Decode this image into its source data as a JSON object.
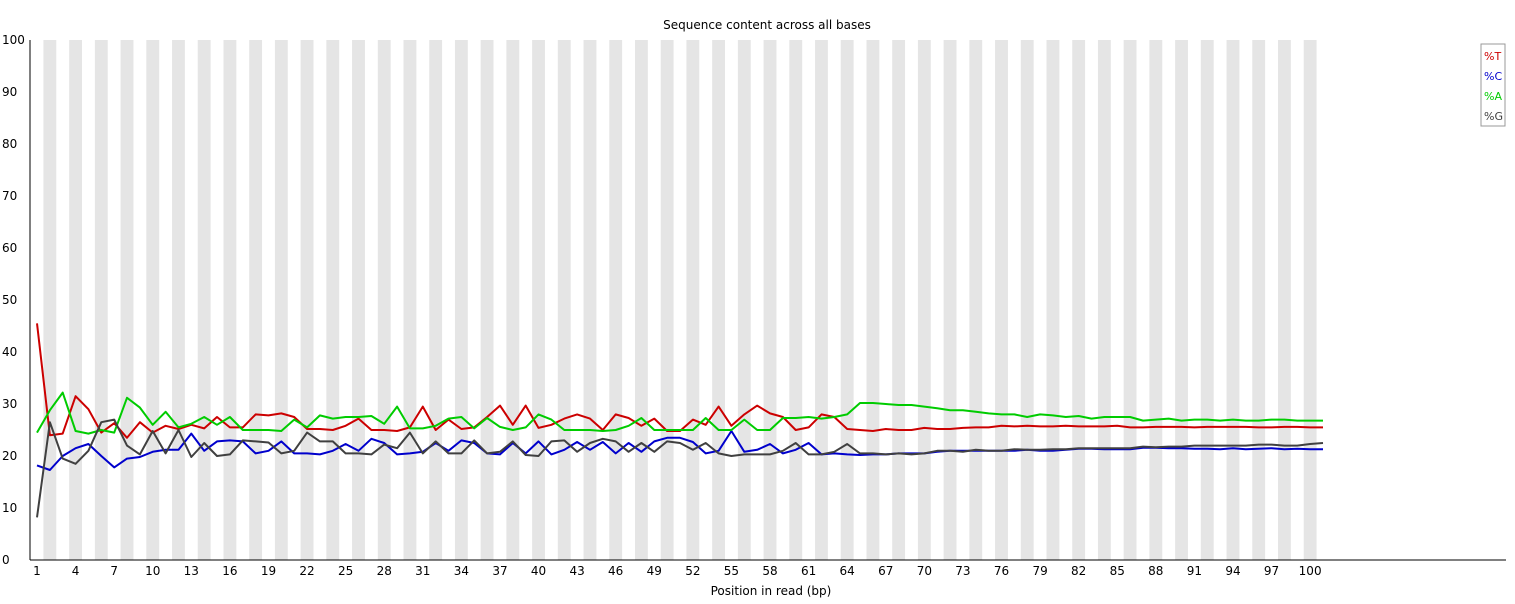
{
  "chart_data": {
    "type": "line",
    "title": "Sequence content across all bases",
    "xlabel": "Position in read (bp)",
    "ylabel": "",
    "ylim": [
      0,
      100
    ],
    "yticks": [
      0,
      10,
      20,
      30,
      40,
      50,
      60,
      70,
      80,
      90,
      100
    ],
    "x_tick_labels": [
      "1",
      "4",
      "7",
      "10",
      "13",
      "16",
      "19",
      "22",
      "25",
      "28",
      "31",
      "34",
      "37",
      "40",
      "43",
      "46",
      "49",
      "52",
      "55",
      "58",
      "61",
      "64",
      "67",
      "70",
      "73",
      "76",
      "79",
      "82",
      "85",
      "88",
      "91",
      "94",
      "97",
      "100"
    ],
    "x": [
      1,
      2,
      3,
      4,
      5,
      6,
      7,
      8,
      9,
      10,
      11,
      12,
      13,
      14,
      15,
      16,
      17,
      18,
      19,
      20,
      21,
      22,
      23,
      24,
      25,
      26,
      27,
      28,
      29,
      30,
      31,
      32,
      33,
      34,
      35,
      36,
      37,
      38,
      39,
      40,
      41,
      42,
      43,
      44,
      45,
      46,
      47,
      48,
      49,
      50,
      51,
      52,
      53,
      54,
      55,
      56,
      57,
      58,
      59,
      60,
      61,
      62,
      63,
      64,
      65,
      66,
      67,
      68,
      69,
      70,
      71,
      72,
      73,
      74,
      75,
      76,
      77,
      78,
      79,
      80,
      81,
      82,
      83,
      84,
      85,
      86,
      87,
      88,
      89,
      90,
      91,
      92,
      93,
      94,
      95,
      96,
      97,
      98,
      99,
      100,
      101
    ],
    "grid": "alternating vertical bands",
    "legend_position": "top-right",
    "series": [
      {
        "name": "%T",
        "color": "#cc0000",
        "values": [
          45.5,
          24,
          24.3,
          31.5,
          29,
          24.5,
          26.3,
          23.5,
          26.5,
          24.5,
          25.8,
          25.2,
          26,
          25.3,
          27.5,
          25.5,
          25.5,
          28,
          27.8,
          28.2,
          27.5,
          25.2,
          25.2,
          25,
          25.8,
          27.2,
          25,
          25,
          24.8,
          25.5,
          29.5,
          25,
          27,
          25.2,
          25.5,
          27.5,
          29.7,
          26,
          29.7,
          25.4,
          26,
          27.2,
          28,
          27.2,
          25,
          28,
          27.3,
          25.8,
          27.2,
          24.8,
          24.8,
          27,
          26,
          29.5,
          25.8,
          28,
          29.7,
          28.2,
          27.5,
          25,
          25.5,
          28,
          27.5,
          25.2,
          25,
          24.8,
          25.2,
          25,
          25,
          25.4,
          25.2,
          25.2,
          25.4,
          25.5,
          25.5,
          25.8,
          25.7,
          25.8,
          25.7,
          25.7,
          25.8,
          25.7,
          25.7,
          25.7,
          25.8,
          25.5,
          25.5,
          25.6,
          25.6,
          25.6,
          25.5,
          25.6,
          25.6,
          25.6,
          25.6,
          25.5,
          25.5,
          25.6,
          25.6,
          25.5,
          25.5
        ]
      },
      {
        "name": "%C",
        "color": "#0000cc",
        "values": [
          18.2,
          17.3,
          20,
          21.5,
          22.3,
          20,
          17.8,
          19.5,
          19.8,
          20.8,
          21.2,
          21.2,
          24.3,
          21,
          22.8,
          23,
          22.8,
          20.5,
          21,
          22.8,
          20.5,
          20.5,
          20.3,
          21,
          22.3,
          21,
          23.3,
          22.5,
          20.3,
          20.5,
          20.8,
          22.5,
          21,
          23,
          22.5,
          20.5,
          20.3,
          22.5,
          20.5,
          22.8,
          20.3,
          21.2,
          22.7,
          21.2,
          22.7,
          20.5,
          22.5,
          20.8,
          22.8,
          23.5,
          23.5,
          22.7,
          20.5,
          21,
          24.8,
          20.8,
          21.2,
          22.3,
          20.5,
          21.2,
          22.5,
          20.3,
          20.5,
          20.3,
          20.2,
          20.3,
          20.3,
          20.5,
          20.5,
          20.5,
          20.8,
          21,
          21,
          21,
          21,
          21,
          21,
          21.2,
          21,
          21,
          21.2,
          21.4,
          21.4,
          21.3,
          21.3,
          21.3,
          21.6,
          21.6,
          21.5,
          21.5,
          21.4,
          21.4,
          21.3,
          21.5,
          21.3,
          21.4,
          21.5,
          21.3,
          21.4,
          21.3,
          21.3
        ]
      },
      {
        "name": "%A",
        "color": "#00cc00",
        "values": [
          24.5,
          28.8,
          32.2,
          24.8,
          24.3,
          25,
          24.5,
          31.2,
          29.3,
          26,
          28.5,
          25.5,
          26.2,
          27.5,
          26,
          27.5,
          25,
          25,
          25,
          24.8,
          27,
          25.5,
          27.8,
          27.2,
          27.5,
          27.5,
          27.7,
          26.2,
          29.5,
          25.3,
          25.3,
          25.8,
          27.2,
          27.5,
          25.3,
          27.3,
          25.6,
          25,
          25.5,
          28,
          27,
          25,
          25,
          25,
          24.8,
          25,
          25.8,
          27.3,
          25,
          25,
          25,
          25,
          27.3,
          25,
          25,
          27,
          25,
          25,
          27.3,
          27.3,
          27.5,
          27.2,
          27.5,
          28,
          30.2,
          30.2,
          30,
          29.8,
          29.8,
          29.5,
          29.2,
          28.8,
          28.8,
          28.5,
          28.2,
          28,
          28,
          27.5,
          28,
          27.8,
          27.5,
          27.7,
          27.2,
          27.5,
          27.5,
          27.5,
          26.8,
          27,
          27.2,
          26.8,
          27,
          27,
          26.8,
          27,
          26.8,
          26.8,
          27,
          27,
          26.8,
          26.8,
          26.8
        ]
      },
      {
        "name": "%G",
        "color": "#404040",
        "values": [
          8.2,
          26.5,
          19.5,
          18.5,
          21,
          26.5,
          27,
          22,
          20.3,
          24.8,
          20.5,
          25,
          19.8,
          22.5,
          20,
          20.3,
          23,
          22.8,
          22.6,
          20.5,
          21,
          24.5,
          22.8,
          22.8,
          20.5,
          20.5,
          20.3,
          22.2,
          21.5,
          24.5,
          20.5,
          22.8,
          20.5,
          20.5,
          23,
          20.5,
          20.8,
          22.8,
          20.2,
          20,
          22.8,
          23,
          20.8,
          22.5,
          23.3,
          22.8,
          20.8,
          22.5,
          20.8,
          22.8,
          22.5,
          21.2,
          22.5,
          20.5,
          20,
          20.3,
          20.3,
          20.3,
          21,
          22.5,
          20.3,
          20.3,
          20.8,
          22.3,
          20.5,
          20.5,
          20.3,
          20.5,
          20.3,
          20.5,
          21,
          21,
          20.8,
          21.2,
          21,
          21,
          21.3,
          21.2,
          21.2,
          21.3,
          21.3,
          21.5,
          21.5,
          21.5,
          21.5,
          21.5,
          21.8,
          21.7,
          21.8,
          21.8,
          22,
          22,
          22,
          22,
          22,
          22.2,
          22.2,
          22,
          22,
          22.3,
          22.5
        ]
      }
    ]
  }
}
